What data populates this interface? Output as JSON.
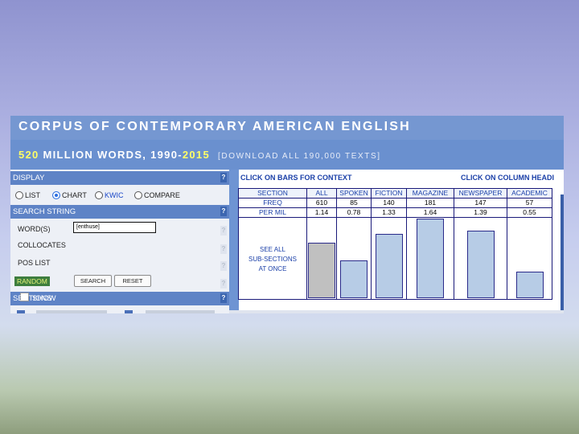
{
  "header": {
    "title": "CORPUS OF CONTEMPORARY AMERICAN ENGLISH",
    "subtitle_words": "520",
    "subtitle_mid": "MILLION WORDS, 1990-",
    "subtitle_year": "2015",
    "download_link": "[DOWNLOAD ALL 190,000 TEXTS]"
  },
  "left_panel": {
    "display_label": "DISPLAY",
    "display_options": [
      "LIST",
      "CHART",
      "KWIC",
      "COMPARE"
    ],
    "display_selected": "CHART",
    "search_string_label": "SEARCH STRING",
    "words_label": "WORD(S)",
    "words_value": "[enthuse]",
    "collocates_label": "COLLOCATES",
    "pos_list_label": "POS LIST",
    "random_label": "RANDOM",
    "search_button": "SEARCH",
    "reset_button": "RESET",
    "sections_label": "SECTIONS",
    "show_label": "SHOW",
    "help_glyph": "?"
  },
  "right_panel": {
    "click_bars": "CLICK ON BARS FOR CONTEXT",
    "click_columns": "CLICK ON COLUMN HEADI",
    "table_headers": [
      "SECTION",
      "ALL",
      "SPOKEN",
      "FICTION",
      "MAGAZINE",
      "NEWSPAPER",
      "ACADEMIC"
    ],
    "freq_label": "FREQ",
    "permil_label": "PER MIL",
    "freq": [
      "610",
      "85",
      "140",
      "181",
      "147",
      "57"
    ],
    "per_mil": [
      "1.14",
      "0.78",
      "1.33",
      "1.64",
      "1.39",
      "0.55"
    ],
    "see_all_lines": [
      "SEE ALL",
      "SUB-SECTIONS",
      "AT ONCE"
    ]
  },
  "chart_data": {
    "type": "bar",
    "categories": [
      "ALL",
      "SPOKEN",
      "FICTION",
      "MAGAZINE",
      "NEWSPAPER",
      "ACADEMIC"
    ],
    "values": [
      1.14,
      0.78,
      1.33,
      1.64,
      1.39,
      0.55
    ],
    "ylabel": "PER MIL",
    "ylim": [
      0,
      1.64
    ]
  },
  "colors": {
    "header_blue": "#7597d1",
    "accent_yellow": "#ffff66",
    "link_blue": "#1a3fa8",
    "bar_fill": "#b7cce6",
    "all_bar_fill": "#c0c0c0"
  }
}
